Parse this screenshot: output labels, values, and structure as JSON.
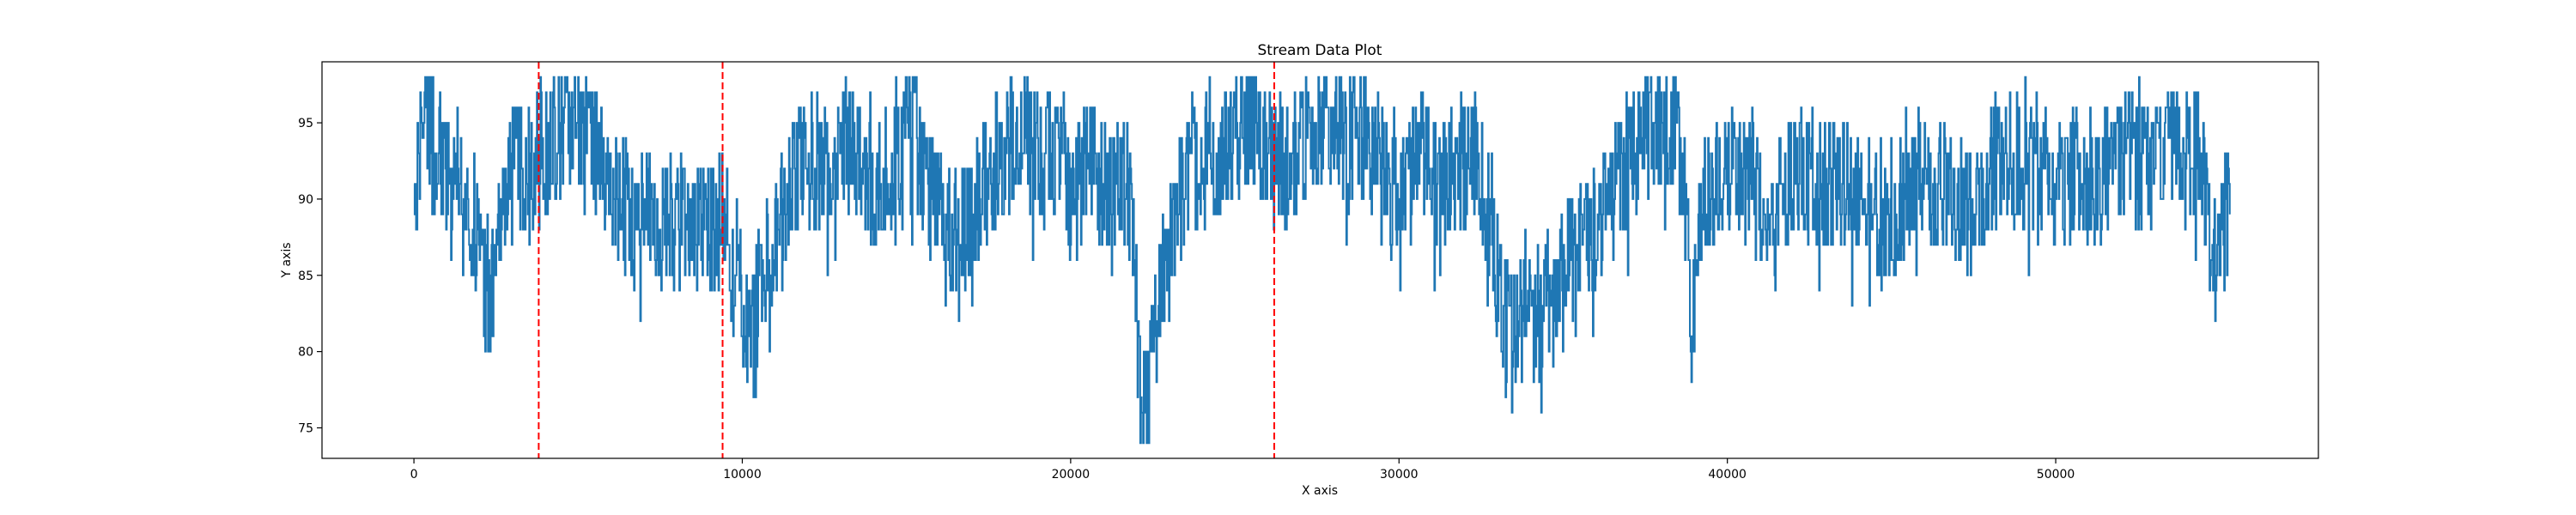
{
  "chart_data": {
    "type": "line",
    "title": "Stream Data Plot",
    "xlabel": "X axis",
    "ylabel": "Y axis",
    "xlim": [
      -2800,
      58000
    ],
    "ylim": [
      73,
      99
    ],
    "xticks": [
      0,
      10000,
      20000,
      30000,
      40000,
      50000
    ],
    "xtick_labels": [
      "0",
      "10000",
      "20000",
      "30000",
      "40000",
      "50000"
    ],
    "yticks": [
      75,
      80,
      85,
      90,
      95
    ],
    "ytick_labels": [
      "75",
      "80",
      "85",
      "90",
      "95"
    ],
    "grid": false,
    "series": [
      {
        "color": "#1f77b4",
        "x_start": 0,
        "x_end": 55300,
        "anchors": [
          [
            0,
            91
          ],
          [
            150,
            94
          ],
          [
            400,
            96
          ],
          [
            700,
            93
          ],
          [
            1000,
            91
          ],
          [
            1400,
            92
          ],
          [
            1800,
            89
          ],
          [
            2100,
            86
          ],
          [
            2300,
            82
          ],
          [
            2500,
            86
          ],
          [
            2800,
            90
          ],
          [
            3100,
            92
          ],
          [
            3400,
            91
          ],
          [
            3800,
            92
          ],
          [
            4300,
            94
          ],
          [
            4800,
            95
          ],
          [
            5300,
            93
          ],
          [
            5800,
            92
          ],
          [
            6300,
            90
          ],
          [
            6800,
            88
          ],
          [
            7200,
            90
          ],
          [
            7700,
            88
          ],
          [
            8200,
            88
          ],
          [
            8600,
            87
          ],
          [
            9000,
            88
          ],
          [
            9400,
            89
          ],
          [
            9700,
            85
          ],
          [
            10000,
            82
          ],
          [
            10300,
            82
          ],
          [
            10700,
            86
          ],
          [
            11200,
            89
          ],
          [
            11800,
            92
          ],
          [
            12500,
            93
          ],
          [
            13200,
            93
          ],
          [
            14000,
            91
          ],
          [
            14600,
            93
          ],
          [
            15200,
            94
          ],
          [
            15800,
            90
          ],
          [
            16400,
            88
          ],
          [
            17000,
            88
          ],
          [
            17600,
            92
          ],
          [
            18200,
            94
          ],
          [
            18800,
            93
          ],
          [
            19500,
            92
          ],
          [
            20000,
            90
          ],
          [
            20600,
            92
          ],
          [
            21200,
            91
          ],
          [
            21600,
            92
          ],
          [
            21900,
            87
          ],
          [
            22100,
            78
          ],
          [
            22300,
            77
          ],
          [
            22700,
            83
          ],
          [
            23200,
            89
          ],
          [
            23800,
            92
          ],
          [
            24500,
            93
          ],
          [
            25200,
            94
          ],
          [
            26000,
            93
          ],
          [
            26600,
            92
          ],
          [
            27200,
            95
          ],
          [
            27800,
            95
          ],
          [
            28400,
            94
          ],
          [
            29000,
            94
          ],
          [
            29600,
            91
          ],
          [
            30100,
            89
          ],
          [
            30600,
            93
          ],
          [
            31200,
            91
          ],
          [
            31800,
            92
          ],
          [
            32300,
            93
          ],
          [
            32700,
            89
          ],
          [
            33000,
            84
          ],
          [
            33300,
            81
          ],
          [
            33700,
            82
          ],
          [
            34100,
            82
          ],
          [
            34500,
            84
          ],
          [
            35000,
            85
          ],
          [
            35500,
            87
          ],
          [
            36000,
            88
          ],
          [
            36600,
            91
          ],
          [
            37200,
            93
          ],
          [
            37800,
            95
          ],
          [
            38400,
            95
          ],
          [
            38700,
            91
          ],
          [
            38900,
            81
          ],
          [
            39100,
            87
          ],
          [
            39500,
            91
          ],
          [
            40000,
            92
          ],
          [
            40600,
            91
          ],
          [
            41000,
            89
          ],
          [
            41300,
            87
          ],
          [
            41700,
            91
          ],
          [
            42200,
            92
          ],
          [
            42800,
            91
          ],
          [
            43400,
            91
          ],
          [
            44100,
            91
          ],
          [
            44700,
            88
          ],
          [
            45300,
            90
          ],
          [
            45900,
            92
          ],
          [
            46500,
            91
          ],
          [
            47100,
            89
          ],
          [
            47700,
            90
          ],
          [
            48300,
            93
          ],
          [
            48900,
            92
          ],
          [
            49500,
            91
          ],
          [
            50100,
            90
          ],
          [
            50700,
            92
          ],
          [
            51300,
            91
          ],
          [
            51900,
            93
          ],
          [
            52500,
            92
          ],
          [
            53100,
            92
          ],
          [
            53700,
            93
          ],
          [
            54300,
            93
          ],
          [
            54600,
            91
          ],
          [
            54750,
            84
          ],
          [
            54900,
            87
          ],
          [
            55100,
            88
          ],
          [
            55300,
            89
          ]
        ]
      }
    ],
    "vlines": [
      {
        "x": 3800,
        "color": "#ff0000",
        "style": "dashed"
      },
      {
        "x": 9400,
        "color": "#ff0000",
        "style": "dashed"
      },
      {
        "x": 26200,
        "color": "#ff0000",
        "style": "dashed"
      }
    ]
  }
}
